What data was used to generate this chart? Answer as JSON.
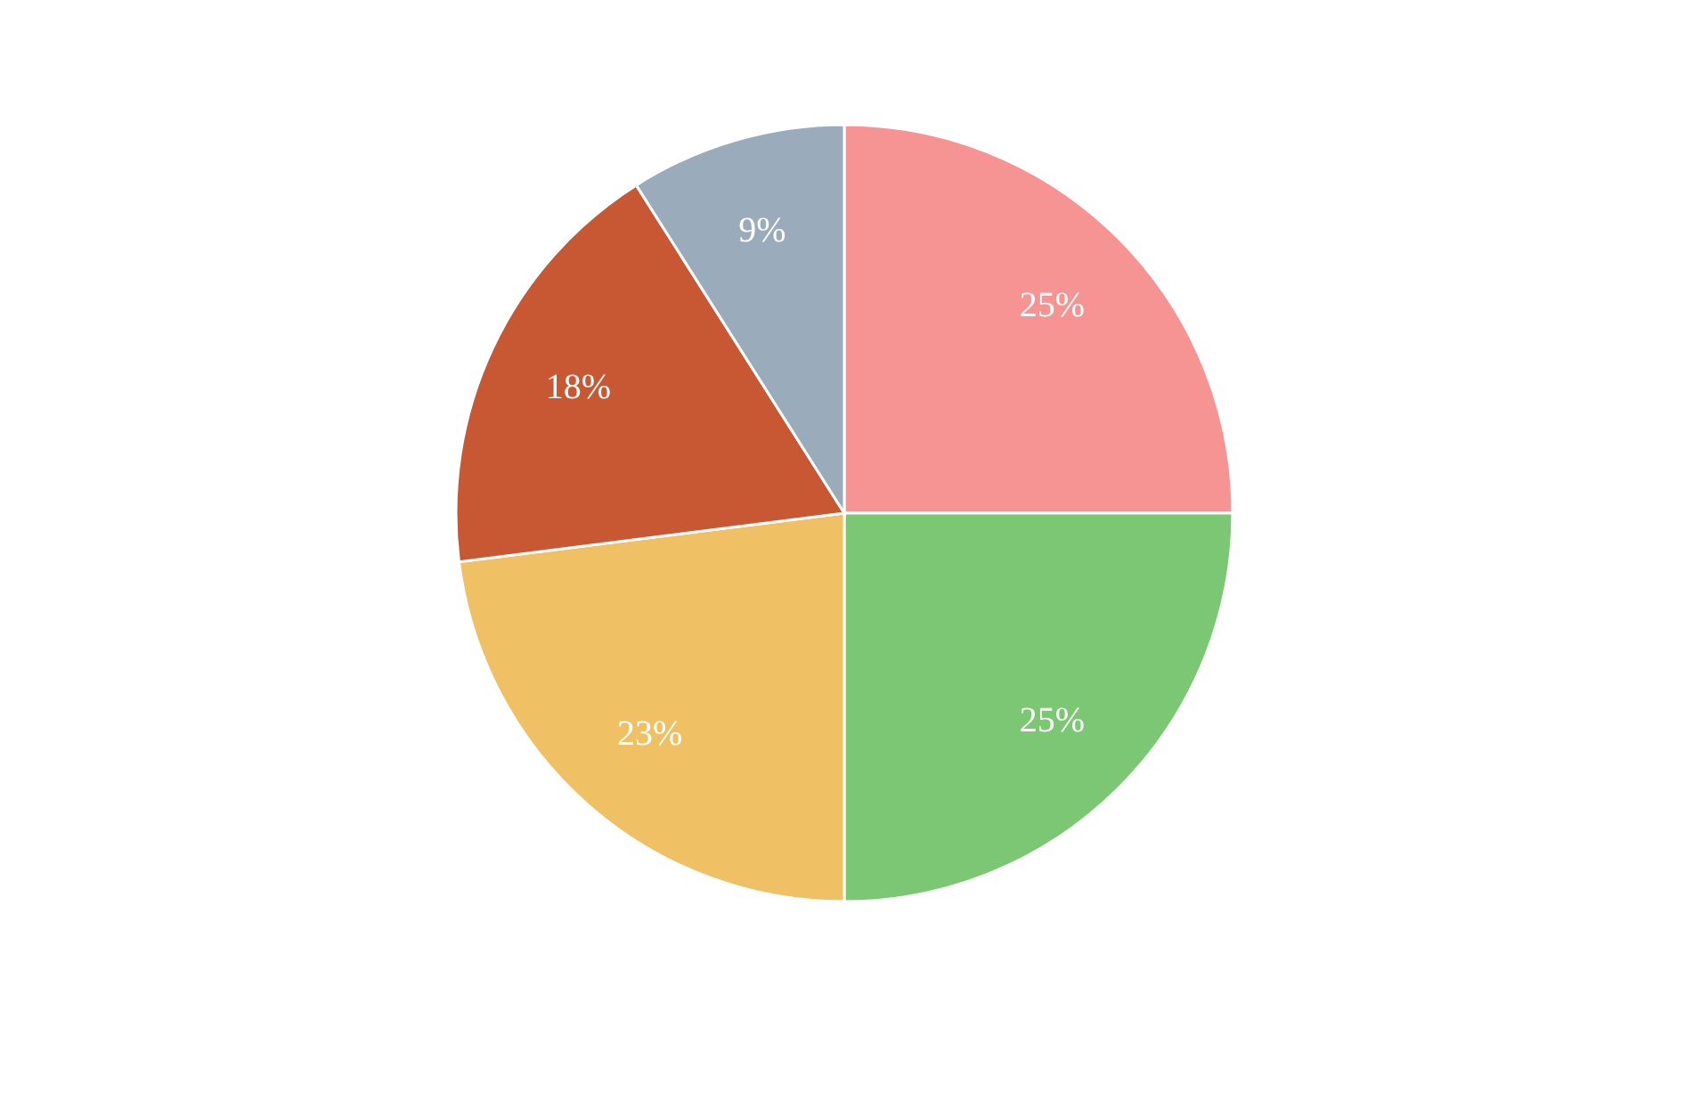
{
  "chart_data": {
    "type": "pie",
    "categories": [
      null,
      null,
      null,
      null,
      null
    ],
    "values": [
      25,
      25,
      23,
      18,
      9
    ],
    "colors": [
      "#f69494",
      "#7cc773",
      "#f0c065",
      "#c85733",
      "#9aabbc"
    ],
    "value_labels": [
      "25%",
      "25%",
      "23%",
      "18%",
      "9%"
    ]
  }
}
